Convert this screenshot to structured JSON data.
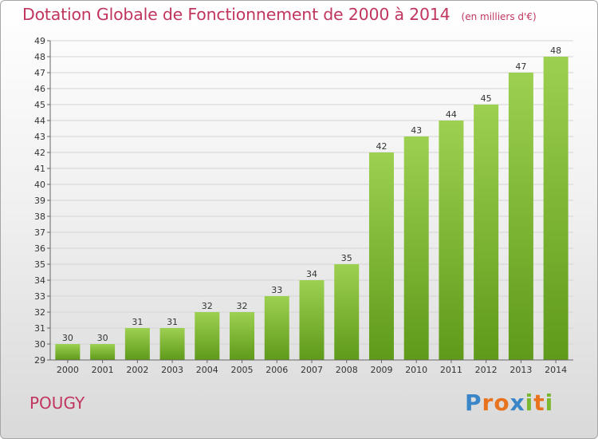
{
  "title": "Dotation Globale de Fonctionnement de 2000 à 2014",
  "unit": "(en milliers d'€)",
  "commune": "POUGY",
  "logo": {
    "text": "Proxiti",
    "colors": [
      "#3a86c8",
      "#e8731e",
      "#e8731e",
      "#3a86c8",
      "#7cb82f",
      "#e8731e",
      "#7cb82f"
    ]
  },
  "chart_data": {
    "type": "bar",
    "title": "Dotation Globale de Fonctionnement de 2000 à 2014",
    "xlabel": "",
    "ylabel": "(en milliers d'€)",
    "categories": [
      "2000",
      "2001",
      "2002",
      "2003",
      "2004",
      "2005",
      "2006",
      "2007",
      "2008",
      "2009",
      "2010",
      "2011",
      "2012",
      "2013",
      "2014"
    ],
    "values": [
      30,
      30,
      31,
      31,
      32,
      32,
      33,
      34,
      35,
      42,
      43,
      44,
      45,
      47,
      48
    ],
    "ylim": [
      29,
      49
    ],
    "yticks": [
      29,
      30,
      31,
      32,
      33,
      34,
      35,
      36,
      37,
      38,
      39,
      40,
      41,
      42,
      43,
      44,
      45,
      46,
      47,
      48,
      49
    ],
    "grid": true,
    "bar_color_top": "#9dd050",
    "bar_color_bottom": "#5f9a1a"
  }
}
